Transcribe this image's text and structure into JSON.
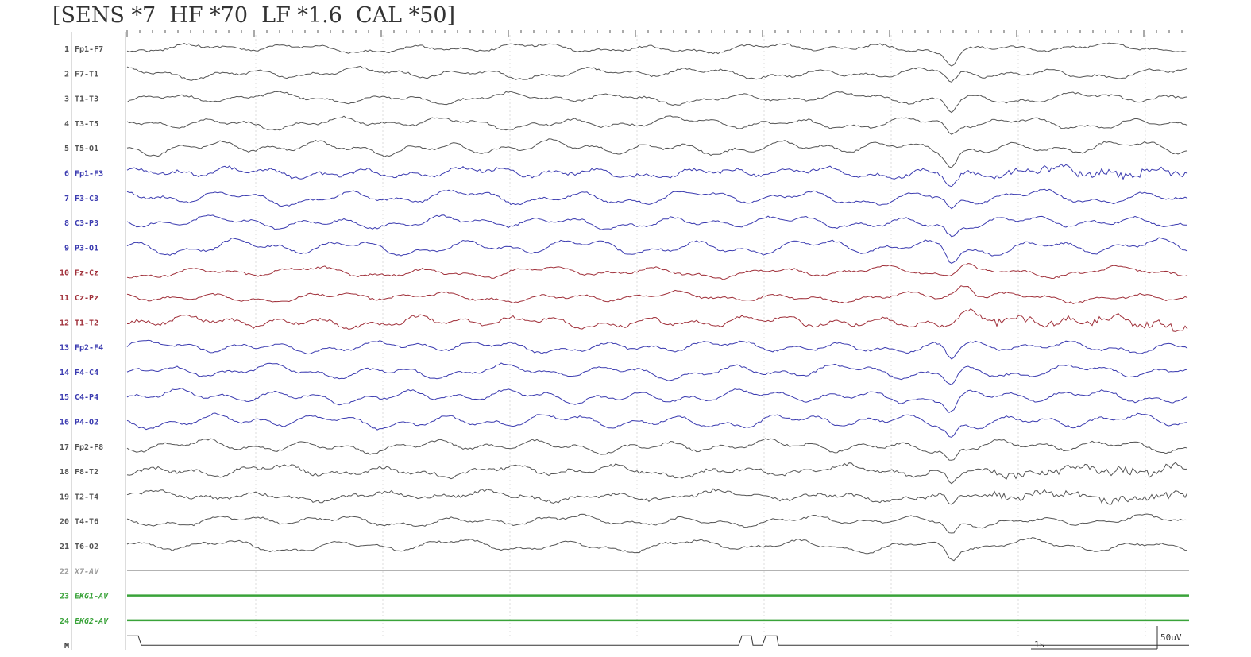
{
  "header": {
    "text": "[SENS *7  HF *70  LF *1.6  CAL *50]"
  },
  "channels": [
    {
      "num": "1",
      "label": "Fp1-F7",
      "color": "#555555",
      "style": "normal"
    },
    {
      "num": "2",
      "label": "F7-T1",
      "color": "#555555",
      "style": "normal"
    },
    {
      "num": "3",
      "label": "T1-T3",
      "color": "#555555",
      "style": "normal"
    },
    {
      "num": "4",
      "label": "T3-T5",
      "color": "#555555",
      "style": "normal"
    },
    {
      "num": "5",
      "label": "T5-O1",
      "color": "#555555",
      "style": "normal"
    },
    {
      "num": "6",
      "label": "Fp1-F3",
      "color": "#3b3bb0",
      "style": "normal"
    },
    {
      "num": "7",
      "label": "F3-C3",
      "color": "#3b3bb0",
      "style": "normal"
    },
    {
      "num": "8",
      "label": "C3-P3",
      "color": "#3b3bb0",
      "style": "normal"
    },
    {
      "num": "9",
      "label": "P3-O1",
      "color": "#3b3bb0",
      "style": "normal"
    },
    {
      "num": "10",
      "label": "Fz-Cz",
      "color": "#a0303a",
      "style": "normal"
    },
    {
      "num": "11",
      "label": "Cz-Pz",
      "color": "#a0303a",
      "style": "normal"
    },
    {
      "num": "12",
      "label": "T1-T2",
      "color": "#a0303a",
      "style": "normal"
    },
    {
      "num": "13",
      "label": "Fp2-F4",
      "color": "#3b3bb0",
      "style": "normal"
    },
    {
      "num": "14",
      "label": "F4-C4",
      "color": "#3b3bb0",
      "style": "normal"
    },
    {
      "num": "15",
      "label": "C4-P4",
      "color": "#3b3bb0",
      "style": "normal"
    },
    {
      "num": "16",
      "label": "P4-O2",
      "color": "#3b3bb0",
      "style": "normal"
    },
    {
      "num": "17",
      "label": "Fp2-F8",
      "color": "#555555",
      "style": "normal"
    },
    {
      "num": "18",
      "label": "F8-T2",
      "color": "#555555",
      "style": "normal"
    },
    {
      "num": "19",
      "label": "T2-T4",
      "color": "#555555",
      "style": "normal"
    },
    {
      "num": "20",
      "label": "T4-T6",
      "color": "#555555",
      "style": "normal"
    },
    {
      "num": "21",
      "label": "T6-O2",
      "color": "#555555",
      "style": "normal"
    },
    {
      "num": "22",
      "label": "X7-AV",
      "color": "#9a9a9a",
      "style": "flat"
    },
    {
      "num": "23",
      "label": "EKG1-AV",
      "color": "#3aa33a",
      "style": "thick"
    },
    {
      "num": "24",
      "label": "EKG2-AV",
      "color": "#3aa33a",
      "style": "thick"
    },
    {
      "num": "M",
      "label": "",
      "color": "#333333",
      "style": "marker"
    }
  ],
  "scale": {
    "time_label": "1s",
    "amp_label": "50uV"
  }
}
